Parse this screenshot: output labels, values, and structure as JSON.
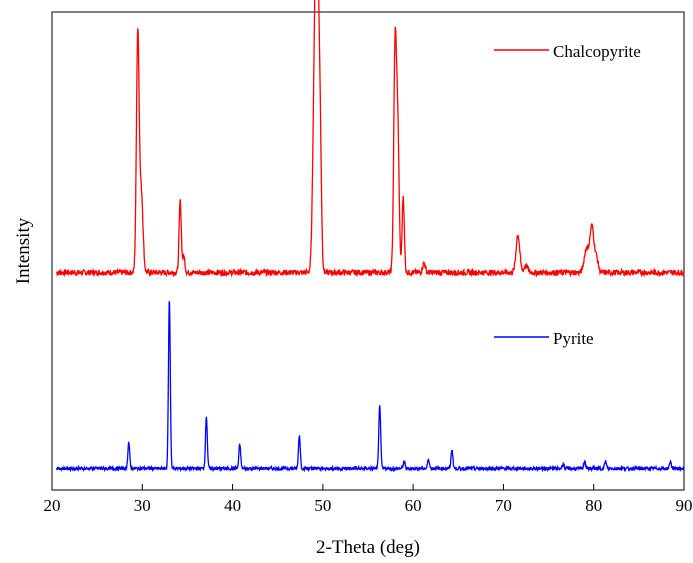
{
  "chart_data": {
    "type": "line",
    "title": "",
    "xlabel": "2-Theta (deg)",
    "ylabel": "Intensity",
    "xlim": [
      20,
      90
    ],
    "ylim": [
      0,
      100
    ],
    "xticks": [
      20,
      30,
      40,
      50,
      60,
      70,
      80,
      90
    ],
    "yticks_shown": false,
    "grid": false,
    "series": [
      {
        "name": "Chalcopyrite",
        "color": "#ff0000",
        "baseline": 45.5,
        "noise": 0.6,
        "peaks": [
          {
            "x": 29.5,
            "y": 95.5,
            "w": 0.15
          },
          {
            "x": 29.9,
            "y": 62.0,
            "w": 0.18
          },
          {
            "x": 34.2,
            "y": 60.5,
            "w": 0.12
          },
          {
            "x": 34.6,
            "y": 49.0,
            "w": 0.12
          },
          {
            "x": 49.1,
            "y": 89.0,
            "w": 0.2
          },
          {
            "x": 49.4,
            "y": 99.5,
            "w": 0.18
          },
          {
            "x": 49.7,
            "y": 70.0,
            "w": 0.15
          },
          {
            "x": 58.0,
            "y": 92.0,
            "w": 0.15
          },
          {
            "x": 58.3,
            "y": 74.0,
            "w": 0.15
          },
          {
            "x": 58.9,
            "y": 61.5,
            "w": 0.12
          },
          {
            "x": 61.2,
            "y": 47.5,
            "w": 0.15
          },
          {
            "x": 71.6,
            "y": 53.5,
            "w": 0.2
          },
          {
            "x": 72.5,
            "y": 47.0,
            "w": 0.2
          },
          {
            "x": 79.2,
            "y": 50.5,
            "w": 0.25
          },
          {
            "x": 79.8,
            "y": 55.0,
            "w": 0.22
          },
          {
            "x": 80.3,
            "y": 48.5,
            "w": 0.2
          }
        ]
      },
      {
        "name": "Pyrite",
        "color": "#0000ff",
        "baseline": 4.5,
        "noise": 0.35,
        "peaks": [
          {
            "x": 28.5,
            "y": 10.0,
            "w": 0.1
          },
          {
            "x": 33.0,
            "y": 40.0,
            "w": 0.1
          },
          {
            "x": 37.1,
            "y": 15.5,
            "w": 0.1
          },
          {
            "x": 40.8,
            "y": 9.5,
            "w": 0.1
          },
          {
            "x": 47.4,
            "y": 11.5,
            "w": 0.1
          },
          {
            "x": 56.3,
            "y": 18.0,
            "w": 0.1
          },
          {
            "x": 59.0,
            "y": 6.0,
            "w": 0.1
          },
          {
            "x": 61.7,
            "y": 6.5,
            "w": 0.1
          },
          {
            "x": 64.3,
            "y": 8.5,
            "w": 0.1
          },
          {
            "x": 76.6,
            "y": 5.5,
            "w": 0.1
          },
          {
            "x": 79.0,
            "y": 6.0,
            "w": 0.1
          },
          {
            "x": 81.3,
            "y": 6.0,
            "w": 0.1
          },
          {
            "x": 88.5,
            "y": 6.0,
            "w": 0.1
          }
        ]
      }
    ],
    "legend": [
      {
        "label": "Chalcopyrite",
        "series": 0,
        "placement": "top-right"
      },
      {
        "label": "Pyrite",
        "series": 1,
        "placement": "right-middle"
      }
    ]
  }
}
